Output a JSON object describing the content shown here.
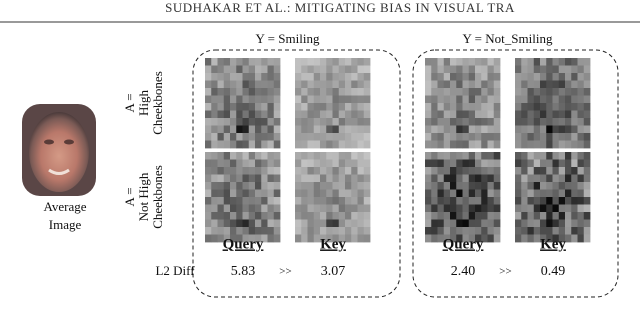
{
  "header": "SUDHAKAR ET AL.: MITIGATING BIAS IN VISUAL TRA",
  "average_image": {
    "lines": [
      "Average",
      "Image"
    ]
  },
  "row_labels": [
    {
      "lines": [
        "A =",
        "High",
        "Cheekbones"
      ]
    },
    {
      "lines": [
        "A =",
        "Not High",
        "Cheekbones"
      ]
    }
  ],
  "l2_label": "L2 Diff",
  "groups": [
    {
      "title": "Y = Smiling",
      "query_label": "Query",
      "key_label": "Key",
      "query_l2": "5.83",
      "relation": ">>",
      "key_l2": "3.07"
    },
    {
      "title": "Y = Not_Smiling",
      "query_label": "Query",
      "key_label": "Key",
      "query_l2": "2.40",
      "relation": ">>",
      "key_l2": "0.49"
    }
  ]
}
